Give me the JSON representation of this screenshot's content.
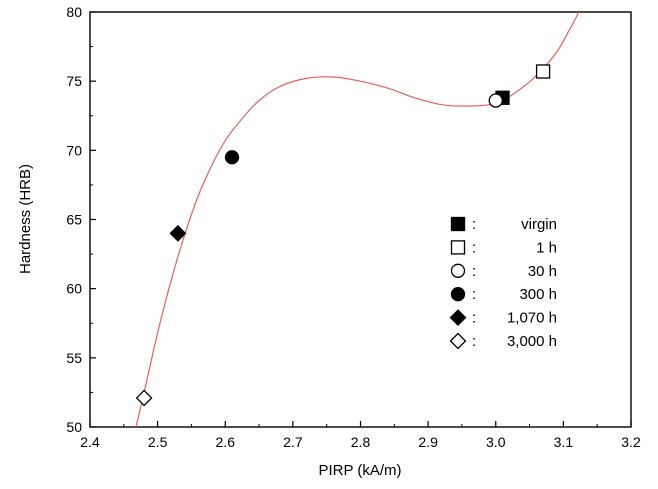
{
  "chart_data": {
    "type": "scatter",
    "xlabel": "PIRP (kA/m)",
    "ylabel": "Hardness (HRB)",
    "xlim": [
      2.4,
      3.2
    ],
    "ylim": [
      50,
      80
    ],
    "x_ticks": [
      "2.4",
      "2.5",
      "2.6",
      "2.7",
      "2.8",
      "2.9",
      "3.0",
      "3.1",
      "3.2"
    ],
    "y_ticks": [
      "50",
      "55",
      "60",
      "65",
      "70",
      "75",
      "80"
    ],
    "grid": false,
    "legend_position": "right-center",
    "series": [
      {
        "name": "virgin",
        "marker": "filled-square",
        "points": [
          {
            "x": 3.01,
            "y": 73.8
          }
        ]
      },
      {
        "name": "1 h",
        "marker": "open-square",
        "points": [
          {
            "x": 3.07,
            "y": 75.7
          }
        ]
      },
      {
        "name": "30 h",
        "marker": "open-circle",
        "points": [
          {
            "x": 3.0,
            "y": 73.6
          }
        ]
      },
      {
        "name": "300 h",
        "marker": "filled-circle",
        "points": [
          {
            "x": 2.61,
            "y": 69.5
          }
        ]
      },
      {
        "name": "1,070 h",
        "marker": "filled-diamond",
        "points": [
          {
            "x": 2.53,
            "y": 64.0
          }
        ]
      },
      {
        "name": "3,000 h",
        "marker": "open-diamond",
        "points": [
          {
            "x": 2.48,
            "y": 52.1
          }
        ]
      }
    ],
    "fit_curve": {
      "color": "#e8605a",
      "points": [
        {
          "x": 2.468,
          "y": 50.0
        },
        {
          "x": 2.48,
          "y": 52.5
        },
        {
          "x": 2.5,
          "y": 56.8
        },
        {
          "x": 2.52,
          "y": 60.6
        },
        {
          "x": 2.54,
          "y": 63.9
        },
        {
          "x": 2.56,
          "y": 66.7
        },
        {
          "x": 2.58,
          "y": 68.9
        },
        {
          "x": 2.6,
          "y": 70.7
        },
        {
          "x": 2.625,
          "y": 72.3
        },
        {
          "x": 2.65,
          "y": 73.6
        },
        {
          "x": 2.68,
          "y": 74.6
        },
        {
          "x": 2.72,
          "y": 75.2
        },
        {
          "x": 2.76,
          "y": 75.3
        },
        {
          "x": 2.8,
          "y": 75.0
        },
        {
          "x": 2.84,
          "y": 74.5
        },
        {
          "x": 2.88,
          "y": 73.8
        },
        {
          "x": 2.92,
          "y": 73.3
        },
        {
          "x": 2.96,
          "y": 73.2
        },
        {
          "x": 3.0,
          "y": 73.4
        },
        {
          "x": 3.03,
          "y": 74.2
        },
        {
          "x": 3.06,
          "y": 75.4
        },
        {
          "x": 3.09,
          "y": 77.1
        },
        {
          "x": 3.11,
          "y": 78.8
        },
        {
          "x": 3.123,
          "y": 80.0
        }
      ]
    }
  }
}
